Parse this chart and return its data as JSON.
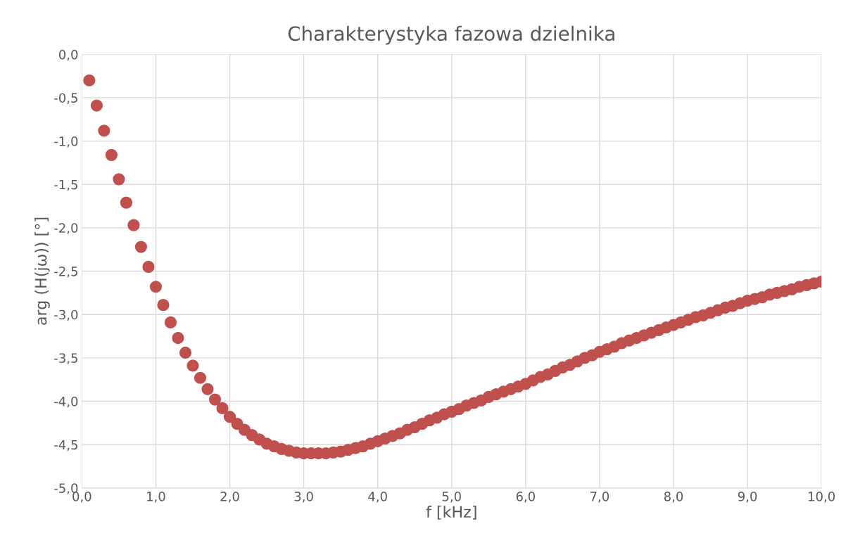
{
  "chart_data": {
    "type": "scatter",
    "title": "Charakterystyka fazowa dzielnika",
    "xlabel": "f [kHz]",
    "ylabel": "arg (H(jω)) [°]",
    "x": [
      0.1,
      0.2,
      0.3,
      0.4,
      0.5,
      0.6,
      0.7,
      0.8,
      0.9,
      1.0,
      1.1,
      1.2,
      1.3,
      1.4,
      1.5,
      1.6,
      1.7,
      1.8,
      1.9,
      2.0,
      2.1,
      2.2,
      2.3,
      2.4,
      2.5,
      2.6,
      2.7,
      2.8,
      2.9,
      3.0,
      3.1,
      3.2,
      3.3,
      3.4,
      3.5,
      3.6,
      3.7,
      3.8,
      3.9,
      4.0,
      4.1,
      4.2,
      4.3,
      4.4,
      4.5,
      4.6,
      4.7,
      4.8,
      4.9,
      5.0,
      5.1,
      5.2,
      5.3,
      5.4,
      5.5,
      5.6,
      5.7,
      5.8,
      5.9,
      6.0,
      6.1,
      6.2,
      6.3,
      6.4,
      6.5,
      6.6,
      6.7,
      6.8,
      6.9,
      7.0,
      7.1,
      7.2,
      7.3,
      7.4,
      7.5,
      7.6,
      7.7,
      7.8,
      7.9,
      8.0,
      8.1,
      8.2,
      8.3,
      8.4,
      8.5,
      8.6,
      8.7,
      8.8,
      8.9,
      9.0,
      9.1,
      9.2,
      9.3,
      9.4,
      9.5,
      9.6,
      9.7,
      9.8,
      9.9,
      10.0
    ],
    "series": [
      {
        "color": "#c0504d",
        "values": [
          -0.3,
          -0.59,
          -0.88,
          -1.16,
          -1.44,
          -1.71,
          -1.97,
          -2.22,
          -2.45,
          -2.68,
          -2.89,
          -3.09,
          -3.27,
          -3.44,
          -3.59,
          -3.73,
          -3.86,
          -3.98,
          -4.08,
          -4.18,
          -4.26,
          -4.33,
          -4.39,
          -4.44,
          -4.49,
          -4.52,
          -4.55,
          -4.57,
          -4.59,
          -4.6,
          -4.6,
          -4.6,
          -4.6,
          -4.59,
          -4.58,
          -4.56,
          -4.54,
          -4.52,
          -4.49,
          -4.46,
          -4.43,
          -4.4,
          -4.37,
          -4.33,
          -4.3,
          -4.26,
          -4.22,
          -4.19,
          -4.15,
          -4.12,
          -4.09,
          -4.05,
          -4.02,
          -3.99,
          -3.95,
          -3.92,
          -3.89,
          -3.86,
          -3.83,
          -3.8,
          -3.76,
          -3.72,
          -3.69,
          -3.65,
          -3.61,
          -3.58,
          -3.54,
          -3.5,
          -3.47,
          -3.43,
          -3.4,
          -3.37,
          -3.33,
          -3.3,
          -3.27,
          -3.24,
          -3.21,
          -3.18,
          -3.15,
          -3.12,
          -3.09,
          -3.06,
          -3.03,
          -3.01,
          -2.98,
          -2.95,
          -2.92,
          -2.9,
          -2.87,
          -2.84,
          -2.82,
          -2.8,
          -2.77,
          -2.75,
          -2.73,
          -2.71,
          -2.68,
          -2.66,
          -2.64,
          -2.62
        ]
      }
    ],
    "xlim": [
      0,
      10
    ],
    "ylim": [
      -5,
      0
    ],
    "xticks": [
      {
        "value": 0,
        "label": "0,0"
      },
      {
        "value": 1,
        "label": "1,0"
      },
      {
        "value": 2,
        "label": "2,0"
      },
      {
        "value": 3,
        "label": "3,0"
      },
      {
        "value": 4,
        "label": "4,0"
      },
      {
        "value": 5,
        "label": "5,0"
      },
      {
        "value": 6,
        "label": "6,0"
      },
      {
        "value": 7,
        "label": "7,0"
      },
      {
        "value": 8,
        "label": "8,0"
      },
      {
        "value": 9,
        "label": "9,0"
      },
      {
        "value": 10,
        "label": "10,0"
      }
    ],
    "yticks": [
      {
        "value": 0,
        "label": "0,0"
      },
      {
        "value": -0.5,
        "label": "-0,5"
      },
      {
        "value": -1,
        "label": "-1,0"
      },
      {
        "value": -1.5,
        "label": "-1,5"
      },
      {
        "value": -2,
        "label": "-2,0"
      },
      {
        "value": -2.5,
        "label": "-2,5"
      },
      {
        "value": -3,
        "label": "-3,0"
      },
      {
        "value": -3.5,
        "label": "-3,5"
      },
      {
        "value": -4,
        "label": "-4,0"
      },
      {
        "value": -4.5,
        "label": "-4,5"
      },
      {
        "value": -5,
        "label": "-5,0"
      }
    ],
    "grid": true,
    "marker": "circle",
    "legend": false
  }
}
